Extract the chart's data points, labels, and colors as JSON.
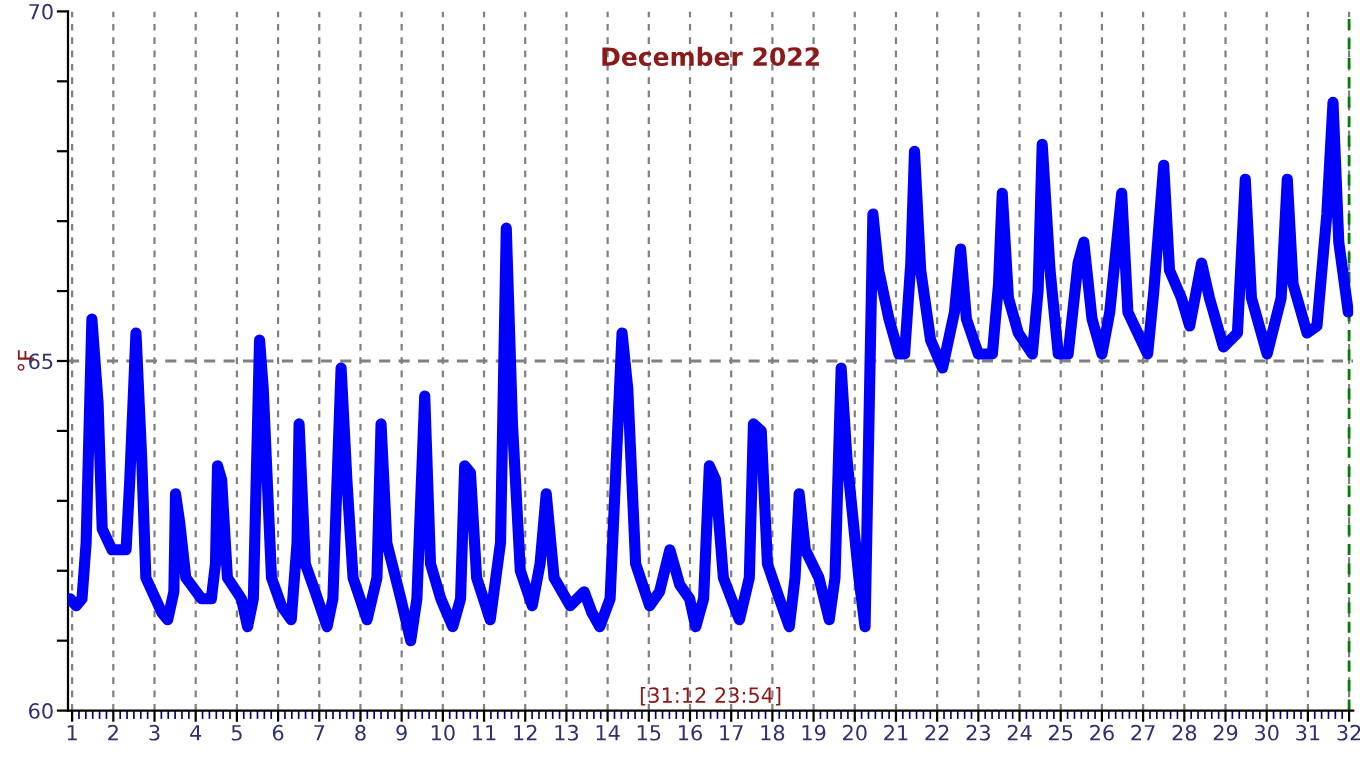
{
  "chart_data": {
    "type": "line",
    "title": "December 2022",
    "ylabel": "°F",
    "annotations": [
      "[31:12 23:54]"
    ],
    "xlim": [
      0.9,
      32.1
    ],
    "ylim": [
      60,
      70
    ],
    "xticks": [
      1,
      2,
      3,
      4,
      5,
      6,
      7,
      8,
      9,
      10,
      11,
      12,
      13,
      14,
      15,
      16,
      17,
      18,
      19,
      20,
      21,
      22,
      23,
      24,
      25,
      26,
      27,
      28,
      29,
      30,
      31,
      32
    ],
    "yticks": [
      60,
      {
        "value": 61,
        "label": null
      },
      {
        "value": 62,
        "label": null
      },
      {
        "value": 63,
        "label": null
      },
      {
        "value": 64,
        "label": null
      },
      65,
      {
        "value": 66,
        "label": null
      },
      {
        "value": 67,
        "label": null
      },
      {
        "value": 68,
        "label": null
      },
      {
        "value": 69,
        "label": null
      },
      70
    ],
    "grid": "x",
    "marker": "none",
    "line_style": "solid",
    "ref_lines": [
      {
        "axis": "y",
        "value": 65,
        "color": "#808080",
        "line_style": "dashed"
      },
      {
        "axis": "x",
        "value": 32,
        "color": "#008000",
        "line_style": "dashed"
      }
    ],
    "series": [
      {
        "color": "#0000ff",
        "x": [
          0.95,
          1.1,
          1.24,
          1.34,
          1.48,
          1.63,
          1.73,
          1.97,
          2.31,
          2.4,
          2.55,
          2.69,
          2.79,
          3.18,
          3.32,
          3.47,
          3.51,
          3.61,
          3.76,
          4.14,
          4.38,
          4.48,
          4.53,
          4.63,
          4.77,
          5.11,
          5.26,
          5.4,
          5.55,
          5.64,
          5.84,
          6.08,
          6.32,
          6.46,
          6.51,
          6.66,
          6.9,
          7.19,
          7.33,
          7.53,
          7.67,
          7.82,
          8.16,
          8.4,
          8.5,
          8.64,
          8.98,
          9.22,
          9.37,
          9.56,
          9.7,
          9.95,
          10.24,
          10.43,
          10.53,
          10.67,
          10.82,
          11.15,
          11.4,
          11.54,
          11.69,
          11.88,
          12.17,
          12.36,
          12.51,
          12.7,
          13.09,
          13.43,
          13.62,
          13.81,
          14.06,
          14.35,
          14.49,
          14.68,
          15.02,
          15.26,
          15.51,
          15.75,
          15.99,
          16.14,
          16.33,
          16.47,
          16.62,
          16.81,
          17.2,
          17.44,
          17.54,
          17.73,
          17.88,
          18.17,
          18.41,
          18.55,
          18.65,
          18.8,
          19.13,
          19.38,
          19.52,
          19.67,
          19.81,
          20.1,
          20.25,
          20.34,
          20.44,
          20.58,
          20.83,
          21.07,
          21.21,
          21.36,
          21.45,
          21.6,
          21.84,
          22.13,
          22.42,
          22.57,
          22.71,
          23.0,
          23.34,
          23.49,
          23.58,
          23.73,
          23.97,
          24.31,
          24.45,
          24.55,
          24.74,
          24.94,
          25.18,
          25.42,
          25.56,
          25.76,
          26.0,
          26.19,
          26.48,
          26.63,
          26.87,
          27.11,
          27.26,
          27.5,
          27.64,
          27.93,
          28.13,
          28.42,
          28.61,
          28.95,
          29.29,
          29.48,
          29.63,
          30.01,
          30.35,
          30.5,
          30.64,
          30.98,
          31.22,
          31.46,
          31.61,
          31.75,
          31.98
        ],
        "values": [
          61.6,
          61.5,
          61.6,
          62.4,
          65.6,
          64.4,
          62.6,
          62.3,
          62.3,
          63.3,
          65.4,
          63.6,
          61.9,
          61.4,
          61.3,
          61.7,
          63.1,
          62.7,
          61.9,
          61.6,
          61.6,
          62.1,
          63.5,
          63.3,
          61.9,
          61.6,
          61.2,
          61.6,
          65.3,
          64.6,
          61.9,
          61.5,
          61.3,
          62.4,
          64.1,
          62.1,
          61.7,
          61.2,
          61.6,
          64.9,
          63.3,
          61.9,
          61.3,
          61.9,
          64.1,
          62.4,
          61.6,
          61.0,
          61.6,
          64.5,
          62.1,
          61.6,
          61.2,
          61.6,
          63.5,
          63.4,
          61.9,
          61.3,
          62.4,
          66.9,
          64.1,
          62.0,
          61.5,
          62.1,
          63.1,
          61.9,
          61.5,
          61.7,
          61.4,
          61.2,
          61.6,
          65.4,
          64.6,
          62.1,
          61.5,
          61.7,
          62.3,
          61.8,
          61.6,
          61.2,
          61.6,
          63.5,
          63.3,
          61.9,
          61.3,
          61.9,
          64.1,
          64.0,
          62.1,
          61.6,
          61.2,
          61.9,
          63.1,
          62.3,
          61.9,
          61.3,
          61.9,
          64.9,
          63.6,
          61.9,
          61.2,
          64.0,
          67.1,
          66.3,
          65.6,
          65.1,
          65.1,
          66.4,
          68.0,
          66.3,
          65.3,
          64.9,
          65.7,
          66.6,
          65.6,
          65.1,
          65.1,
          66.1,
          67.4,
          65.9,
          65.4,
          65.1,
          66.0,
          68.1,
          66.3,
          65.1,
          65.1,
          66.4,
          66.7,
          65.6,
          65.1,
          65.7,
          67.4,
          65.7,
          65.4,
          65.1,
          66.0,
          67.8,
          66.3,
          65.9,
          65.5,
          66.4,
          65.9,
          65.2,
          65.4,
          67.6,
          65.9,
          65.1,
          65.9,
          67.6,
          66.1,
          65.4,
          65.5,
          67.1,
          68.7,
          66.7,
          65.7
        ]
      }
    ]
  }
}
